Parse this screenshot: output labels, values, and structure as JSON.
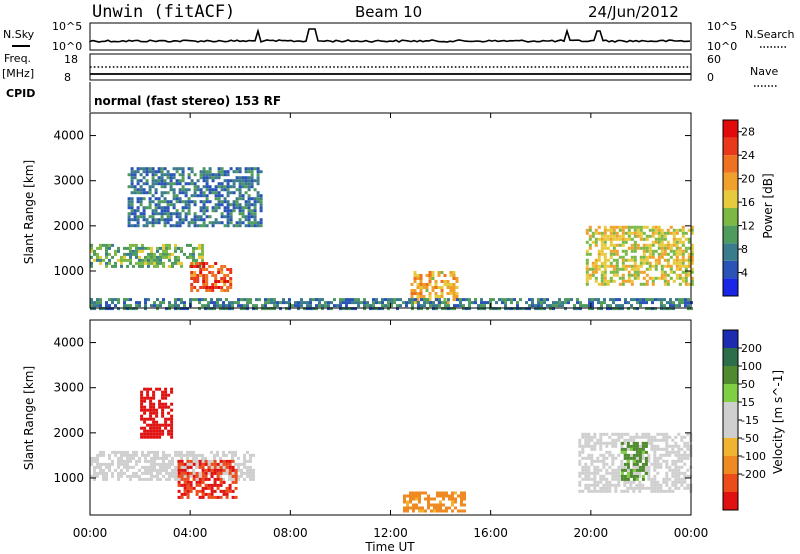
{
  "header": {
    "station": "Unwin (fitACF)",
    "beam": "Beam 10",
    "date": "24/Jun/2012",
    "cpid_line": "normal (fast stereo) 153 RF"
  },
  "side_labels": {
    "nsky": "N.Sky",
    "nsearch": "N.Search",
    "freq": "Freq.",
    "mhz": "[MHz]",
    "cpid": "CPID",
    "nave": "Nave"
  },
  "noise_axis": {
    "top": "10^5",
    "bottom": "10^0"
  },
  "freq_axis": {
    "left_top": "18",
    "left_bottom": "8",
    "right_top": "60",
    "right_bottom": "0"
  },
  "colors": {
    "power_scale": [
      "#1a26e6",
      "#2a53b8",
      "#3b7c8c",
      "#4f9a5d",
      "#7cb845",
      "#e8cb3c",
      "#f0a12c",
      "#ef7222",
      "#e9391a",
      "#e10b0b"
    ],
    "velocity_scale": [
      "#1d2bb0",
      "#2c6e4a",
      "#4f8a2e",
      "#7fcf45",
      "#cfcfcf",
      "#cfcfcf",
      "#f0b431",
      "#ef8a22",
      "#ec4b1a",
      "#e01111"
    ]
  },
  "chart_data": [
    {
      "type": "line",
      "name": "noise",
      "series": [
        {
          "name": "N.Sky"
        },
        {
          "name": "N.Search"
        }
      ],
      "y_scale": "log",
      "ylim": [
        1,
        100000
      ],
      "xlim": [
        "00:00",
        "24:00"
      ]
    },
    {
      "type": "line",
      "name": "frequency-nave",
      "series": [
        {
          "name": "Freq.",
          "values_mhz": 11.8
        },
        {
          "name": "Nave",
          "values": 28
        }
      ],
      "ylim_left": [
        8,
        18
      ],
      "ylim_right": [
        0,
        60
      ]
    },
    {
      "type": "heatmap",
      "name": "power",
      "ylabel": "Slant Range [km]",
      "ylim": [
        180,
        4500
      ],
      "yticks": [
        1000,
        2000,
        3000,
        4000
      ],
      "colorbar": {
        "label": "Power [dB]",
        "ticks": [
          4,
          8,
          12,
          16,
          20,
          24,
          28
        ],
        "range": [
          0,
          30
        ]
      },
      "regions": [
        {
          "t_start": 0.0,
          "t_end": 4.5,
          "r_min": 1100,
          "r_max": 1600,
          "value": 12
        },
        {
          "t_start": 1.5,
          "t_end": 6.8,
          "r_min": 2000,
          "r_max": 3300,
          "value": 7
        },
        {
          "t_start": 4.0,
          "t_end": 5.6,
          "r_min": 600,
          "r_max": 1200,
          "value": 24
        },
        {
          "t_start": 12.8,
          "t_end": 14.6,
          "r_min": 300,
          "r_max": 1000,
          "value": 18
        },
        {
          "t_start": 19.8,
          "t_end": 24.0,
          "r_min": 700,
          "r_max": 2000,
          "value": 16
        },
        {
          "t_start": 0.0,
          "t_end": 24.0,
          "r_min": 200,
          "r_max": 400,
          "value": 8
        }
      ]
    },
    {
      "type": "heatmap",
      "name": "velocity",
      "xlabel": "Time UT",
      "ylabel": "Slant Range [km]",
      "xticks": [
        "00:00",
        "04:00",
        "08:00",
        "12:00",
        "16:00",
        "20:00",
        "00:00"
      ],
      "ylim": [
        180,
        4500
      ],
      "yticks": [
        1000,
        2000,
        3000,
        4000
      ],
      "colorbar": {
        "label": "Velocity [m s^-1]",
        "ticks": [
          200,
          100,
          50,
          15,
          -15,
          -50,
          -100,
          -200
        ]
      },
      "regions": [
        {
          "t_start": 0.0,
          "t_end": 6.5,
          "r_min": 1000,
          "r_max": 1600,
          "value": 0
        },
        {
          "t_start": 3.5,
          "t_end": 5.8,
          "r_min": 600,
          "r_max": 1400,
          "value": -150
        },
        {
          "t_start": 2.0,
          "t_end": 3.2,
          "r_min": 1900,
          "r_max": 3000,
          "value": -200
        },
        {
          "t_start": 12.5,
          "t_end": 15.0,
          "r_min": 300,
          "r_max": 700,
          "value": -40
        },
        {
          "t_start": 19.5,
          "t_end": 24.0,
          "r_min": 700,
          "r_max": 2000,
          "value": 0
        },
        {
          "t_start": 21.2,
          "t_end": 22.2,
          "r_min": 1000,
          "r_max": 1800,
          "value": 40
        }
      ]
    }
  ]
}
